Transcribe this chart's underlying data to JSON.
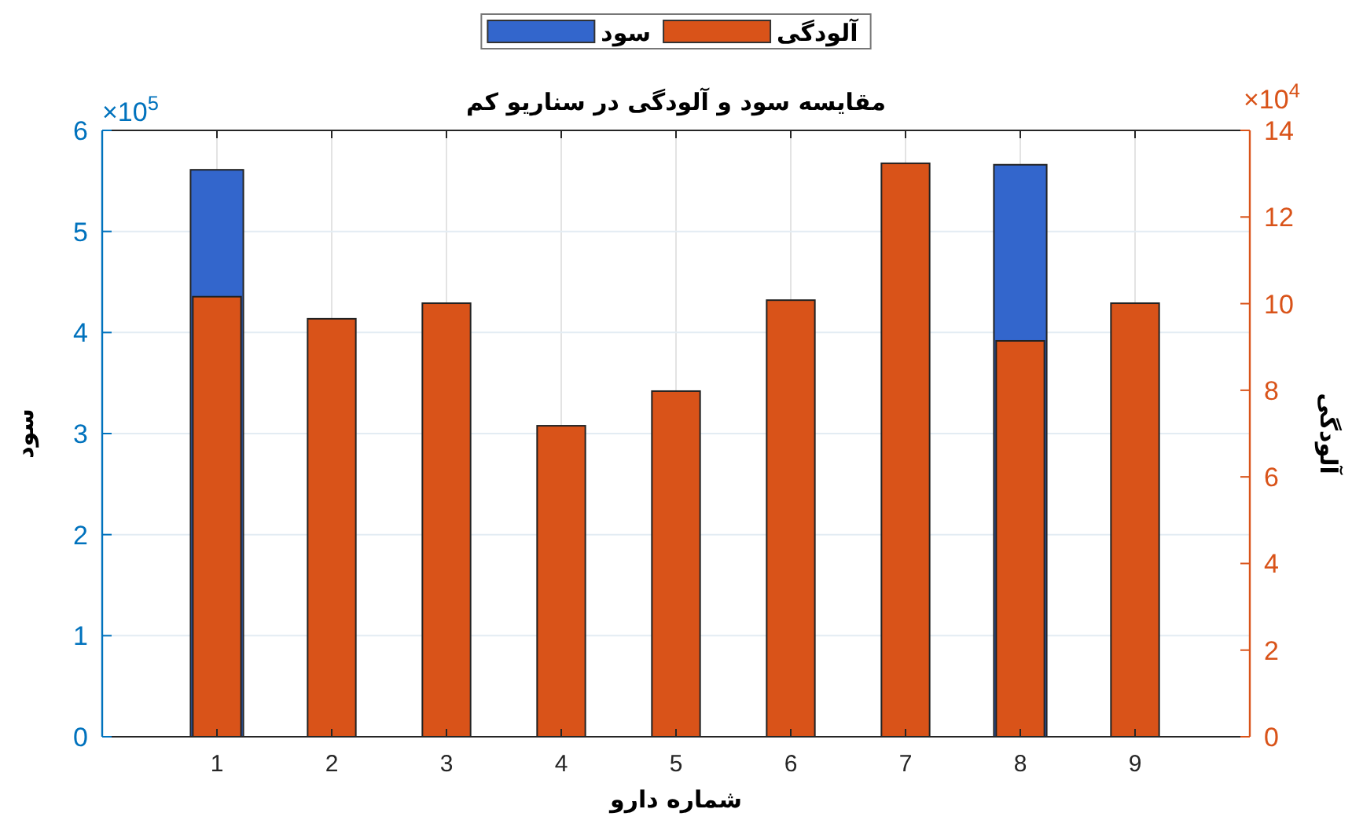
{
  "chart_data": {
    "type": "bar",
    "title": "مقایسه سود و آلودگی در سناریو کم",
    "xlabel": "شماره دارو",
    "ylabel": "سود",
    "y2label": "آلودگی",
    "categories": [
      "1",
      "2",
      "3",
      "4",
      "5",
      "6",
      "7",
      "8",
      "9"
    ],
    "series": [
      {
        "name": "سود",
        "color": "#3366cc",
        "values": [
          5.61,
          null,
          null,
          null,
          null,
          null,
          null,
          5.66,
          null
        ]
      },
      {
        "name": "آلودگی",
        "color": "#d95319",
        "axis": "y2",
        "values": [
          10.16,
          9.65,
          10.01,
          7.18,
          7.98,
          10.08,
          13.24,
          9.14,
          10.01
        ]
      }
    ],
    "ylim": [
      0,
      6
    ],
    "yticks": [
      0,
      1,
      2,
      3,
      4,
      5,
      6
    ],
    "y2lim": [
      0,
      14
    ],
    "y2ticks": [
      0,
      2,
      4,
      6,
      8,
      10,
      12,
      14
    ],
    "annotations": [
      "×10$^{5}$",
      "×10$^{4}$"
    ],
    "grid": true,
    "legend": "top"
  }
}
